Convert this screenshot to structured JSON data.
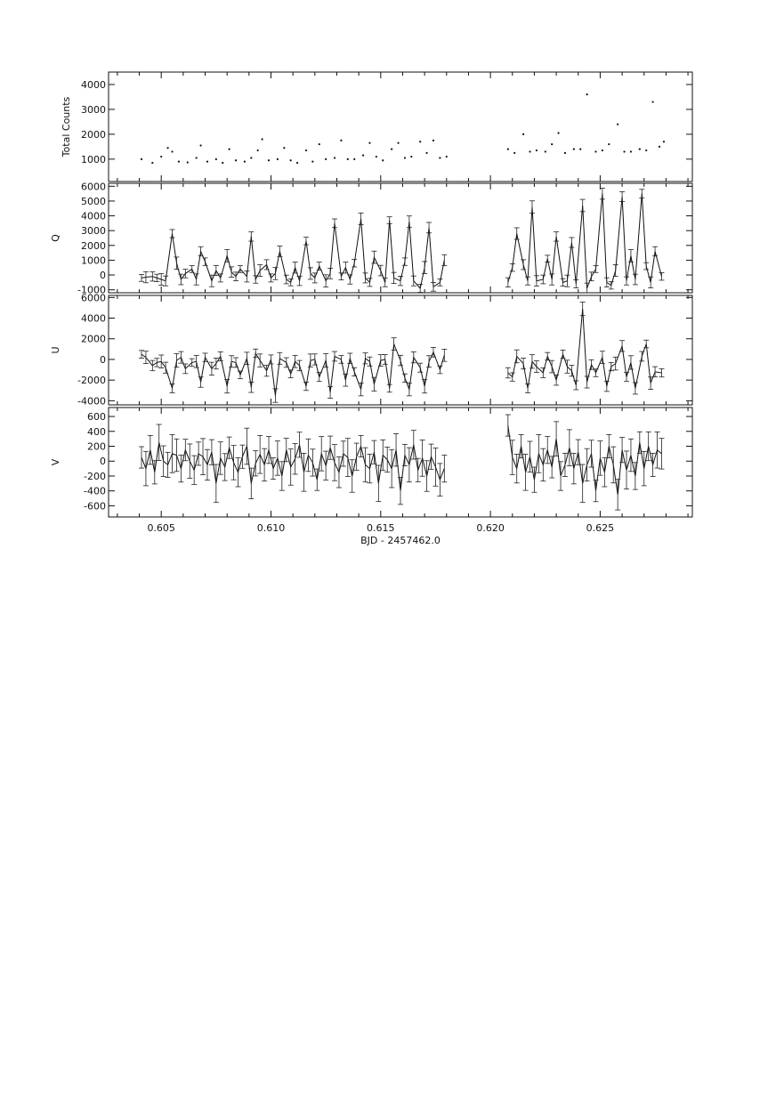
{
  "chart_data": [
    {
      "type": "scatter",
      "panel": "total_counts",
      "ylabel": "Total Counts",
      "xlabel": "",
      "ylim": [
        100,
        4500
      ],
      "yticks": [
        1000,
        2000,
        3000,
        4000
      ],
      "xlim": [
        0.6026,
        0.6292
      ],
      "xticks": [
        0.605,
        0.61,
        0.615,
        0.62,
        0.625
      ],
      "series": [
        {
          "x": [
            0.6041,
            0.6046,
            0.605,
            0.6053,
            0.6055,
            0.6058,
            0.6062,
            0.6066,
            0.6068,
            0.6071,
            0.6075,
            0.6078,
            0.6081,
            0.6084,
            0.6088,
            0.6091,
            0.6094,
            0.6096,
            0.6099,
            0.6103,
            0.6106,
            0.6109,
            0.6112,
            0.6116,
            0.6119,
            0.6122,
            0.6125,
            0.6129,
            0.6132,
            0.6135,
            0.6138,
            0.6142,
            0.6145,
            0.6148,
            0.6151,
            0.6155,
            0.6158,
            0.6161,
            0.6164,
            0.6168,
            0.6171,
            0.6174,
            0.6177,
            0.618,
            0.6208,
            0.6211,
            0.6215,
            0.6218,
            0.6221,
            0.6225,
            0.6228,
            0.6231,
            0.6234,
            0.6238,
            0.6241,
            0.6244,
            0.6248,
            0.6251,
            0.6254,
            0.6258,
            0.6261,
            0.6264,
            0.6268,
            0.6271,
            0.6274,
            0.6277,
            0.6279
          ],
          "values": [
            1000,
            850,
            1100,
            1450,
            1300,
            900,
            870,
            1050,
            1550,
            900,
            1000,
            850,
            1400,
            950,
            900,
            1050,
            1350,
            1800,
            950,
            1000,
            1450,
            950,
            850,
            1350,
            900,
            1600,
            1000,
            1050,
            1750,
            1000,
            1000,
            1150,
            1650,
            1100,
            950,
            1400,
            1650,
            1050,
            1100,
            1700,
            1250,
            1750,
            1050,
            1100,
            1400,
            1250,
            2000,
            1300,
            1350,
            1300,
            1600,
            2050,
            1250,
            1400,
            1400,
            3600,
            1300,
            1350,
            1600,
            2400,
            1300,
            1300,
            1400,
            1350,
            3300,
            1500,
            1700
          ]
        }
      ]
    },
    {
      "type": "line",
      "panel": "Q",
      "ylabel": "Q",
      "xlabel": "",
      "ylim": [
        -1200,
        6200
      ],
      "yticks": [
        -1000,
        0,
        1000,
        2000,
        3000,
        4000,
        5000,
        6000
      ],
      "xlim": [
        0.6026,
        0.6292
      ],
      "xticks": [
        0.605,
        0.61,
        0.615,
        0.62,
        0.625
      ],
      "series": [
        {
          "x": [
            0.6041,
            0.6043,
            0.6046,
            0.6048,
            0.605,
            0.6052,
            0.6055,
            0.6057,
            0.6059,
            0.6061,
            0.6064,
            0.6066,
            0.6068,
            0.607,
            0.6073,
            0.6075,
            0.6077,
            0.608,
            0.6082,
            0.6084,
            0.6086,
            0.6089,
            0.6091,
            0.6093,
            0.6095,
            0.6098,
            0.61,
            0.6102,
            0.6104,
            0.6107,
            0.6109,
            0.6111,
            0.6113,
            0.6116,
            0.6118,
            0.612,
            0.6122,
            0.6125,
            0.6127,
            0.6129,
            0.6132,
            0.6134,
            0.6136,
            0.6138,
            0.6141,
            0.6143,
            0.6145,
            0.6147,
            0.615,
            0.6152,
            0.6154,
            0.6156,
            0.6159,
            0.6161,
            0.6163,
            0.6165,
            0.6168,
            0.617,
            0.6172,
            0.6174,
            0.6177,
            0.6179,
            0.6208,
            0.621,
            0.6212,
            0.6215,
            0.6217,
            0.6219,
            0.6221,
            0.6224,
            0.6226,
            0.6228,
            0.623,
            0.6233,
            0.6235,
            0.6237,
            0.6239,
            0.6242,
            0.6244,
            0.6246,
            0.6248,
            0.6251,
            0.6253,
            0.6255,
            0.6257,
            0.626,
            0.6262,
            0.6264,
            0.6266,
            0.6269,
            0.6271,
            0.6273,
            0.6275,
            0.6278
          ],
          "values": [
            -200,
            -150,
            -100,
            -200,
            -300,
            -400,
            2800,
            800,
            -300,
            100,
            400,
            -300,
            1600,
            900,
            -400,
            300,
            -200,
            1300,
            200,
            -100,
            400,
            -100,
            2600,
            -300,
            300,
            700,
            -200,
            100,
            1600,
            -300,
            -500,
            500,
            -400,
            2300,
            100,
            -200,
            600,
            -400,
            100,
            3500,
            -100,
            500,
            -300,
            800,
            3800,
            -200,
            -500,
            1200,
            300,
            -500,
            3700,
            -200,
            -400,
            900,
            3600,
            -400,
            -900,
            500,
            3200,
            -800,
            -500,
            1000,
            -500,
            500,
            2800,
            700,
            -400,
            4600,
            -400,
            -300,
            1100,
            -300,
            2600,
            -500,
            -400,
            2200,
            -600,
            4700,
            -900,
            -100,
            400,
            5500,
            -500,
            -700,
            300,
            5300,
            -400,
            1300,
            -300,
            5500,
            600,
            -500,
            1600,
            -100
          ]
        }
      ]
    },
    {
      "type": "line",
      "panel": "U",
      "ylabel": "U",
      "xlabel": "",
      "ylim": [
        -4400,
        6200
      ],
      "yticks": [
        -4000,
        -2000,
        0,
        2000,
        4000,
        6000
      ],
      "xlim": [
        0.6026,
        0.6292
      ],
      "xticks": [
        0.605,
        0.61,
        0.615,
        0.62,
        0.625
      ],
      "series": [
        {
          "x": [
            0.6041,
            0.6043,
            0.6046,
            0.6048,
            0.605,
            0.6052,
            0.6055,
            0.6057,
            0.6059,
            0.6061,
            0.6064,
            0.6066,
            0.6068,
            0.607,
            0.6073,
            0.6075,
            0.6077,
            0.608,
            0.6082,
            0.6084,
            0.6086,
            0.6089,
            0.6091,
            0.6093,
            0.6095,
            0.6098,
            0.61,
            0.6102,
            0.6104,
            0.6107,
            0.6109,
            0.6111,
            0.6113,
            0.6116,
            0.6118,
            0.612,
            0.6122,
            0.6125,
            0.6127,
            0.6129,
            0.6132,
            0.6134,
            0.6136,
            0.6138,
            0.6141,
            0.6143,
            0.6145,
            0.6147,
            0.615,
            0.6152,
            0.6154,
            0.6156,
            0.6159,
            0.6161,
            0.6163,
            0.6165,
            0.6168,
            0.617,
            0.6172,
            0.6174,
            0.6177,
            0.6179,
            0.6208,
            0.621,
            0.6212,
            0.6215,
            0.6217,
            0.6219,
            0.6221,
            0.6224,
            0.6226,
            0.6228,
            0.623,
            0.6233,
            0.6235,
            0.6237,
            0.6239,
            0.6242,
            0.6244,
            0.6246,
            0.6248,
            0.6251,
            0.6253,
            0.6255,
            0.6257,
            0.626,
            0.6262,
            0.6264,
            0.6266,
            0.6269,
            0.6271,
            0.6273,
            0.6275,
            0.6278
          ],
          "values": [
            500,
            200,
            -600,
            -300,
            -200,
            -800,
            -2800,
            -100,
            200,
            -900,
            -300,
            -200,
            -2200,
            200,
            -900,
            -400,
            300,
            -2600,
            -200,
            -300,
            -1500,
            100,
            -2700,
            600,
            -100,
            -1100,
            0,
            -3500,
            100,
            -300,
            -1400,
            -200,
            -600,
            -2600,
            -100,
            0,
            -1700,
            -100,
            -3200,
            300,
            0,
            -2000,
            100,
            -1200,
            -2900,
            100,
            -200,
            -2400,
            -100,
            0,
            -2800,
            1500,
            -100,
            -1800,
            -2900,
            200,
            -800,
            -2600,
            -200,
            700,
            -1000,
            400,
            -1300,
            -1700,
            300,
            -400,
            -2800,
            -200,
            -700,
            -1300,
            300,
            -700,
            -2000,
            500,
            -700,
            -1100,
            -2500,
            4900,
            -2200,
            -500,
            -1300,
            200,
            -2600,
            -700,
            -400,
            1300,
            -1700,
            -300,
            -2800,
            300,
            1500,
            -2300,
            -1200,
            -1300
          ]
        }
      ]
    },
    {
      "type": "line",
      "panel": "V",
      "ylabel": "V",
      "xlabel": "BJD - 2457462.0",
      "ylim": [
        -750,
        720
      ],
      "yticks": [
        -600,
        -400,
        -200,
        0,
        200,
        400,
        600
      ],
      "xlim": [
        0.6026,
        0.6292
      ],
      "xticks": [
        0.605,
        0.61,
        0.615,
        0.62,
        0.625
      ],
      "series": [
        {
          "x": [
            0.6041,
            0.6043,
            0.6045,
            0.6047,
            0.6049,
            0.6051,
            0.6053,
            0.6055,
            0.6057,
            0.6059,
            0.6061,
            0.6063,
            0.6065,
            0.6067,
            0.6069,
            0.6071,
            0.6073,
            0.6075,
            0.6077,
            0.6079,
            0.6081,
            0.6083,
            0.6085,
            0.6087,
            0.6089,
            0.6091,
            0.6093,
            0.6095,
            0.6097,
            0.6099,
            0.6101,
            0.6103,
            0.6105,
            0.6107,
            0.6109,
            0.6111,
            0.6113,
            0.6115,
            0.6117,
            0.6119,
            0.6121,
            0.6123,
            0.6125,
            0.6127,
            0.6129,
            0.6131,
            0.6133,
            0.6135,
            0.6137,
            0.6139,
            0.6141,
            0.6143,
            0.6145,
            0.6147,
            0.6149,
            0.6151,
            0.6153,
            0.6155,
            0.6157,
            0.6159,
            0.6161,
            0.6163,
            0.6165,
            0.6167,
            0.6169,
            0.6171,
            0.6173,
            0.6175,
            0.6177,
            0.6179,
            0.6208,
            0.621,
            0.6212,
            0.6214,
            0.6216,
            0.6218,
            0.622,
            0.6222,
            0.6224,
            0.6226,
            0.6228,
            0.623,
            0.6232,
            0.6234,
            0.6236,
            0.6238,
            0.624,
            0.6242,
            0.6244,
            0.6246,
            0.6248,
            0.625,
            0.6252,
            0.6254,
            0.6256,
            0.6258,
            0.626,
            0.6262,
            0.6264,
            0.6266,
            0.6268,
            0.627,
            0.6272,
            0.6274,
            0.6276,
            0.6278
          ],
          "values": [
            50,
            -100,
            150,
            -150,
            250,
            0,
            -50,
            100,
            80,
            -100,
            150,
            0,
            -120,
            100,
            60,
            -50,
            120,
            -300,
            40,
            -80,
            180,
            -20,
            -150,
            60,
            200,
            -300,
            -30,
            90,
            -50,
            150,
            -100,
            40,
            -200,
            150,
            -80,
            30,
            220,
            -150,
            80,
            -20,
            -250,
            100,
            -60,
            180,
            -20,
            -150,
            100,
            50,
            -200,
            60,
            200,
            -50,
            -100,
            120,
            -300,
            80,
            20,
            -100,
            150,
            -400,
            80,
            -50,
            220,
            -120,
            40,
            -200,
            60,
            -80,
            -250,
            -100,
            480,
            50,
            -100,
            200,
            -150,
            60,
            -250,
            100,
            -50,
            150,
            -80,
            300,
            -200,
            -50,
            180,
            -100,
            120,
            -300,
            -50,
            100,
            -400,
            40,
            -150,
            200,
            -50,
            -450,
            150,
            -120,
            80,
            -200,
            250,
            -100,
            200,
            -50,
            150,
            100
          ]
        }
      ]
    }
  ]
}
